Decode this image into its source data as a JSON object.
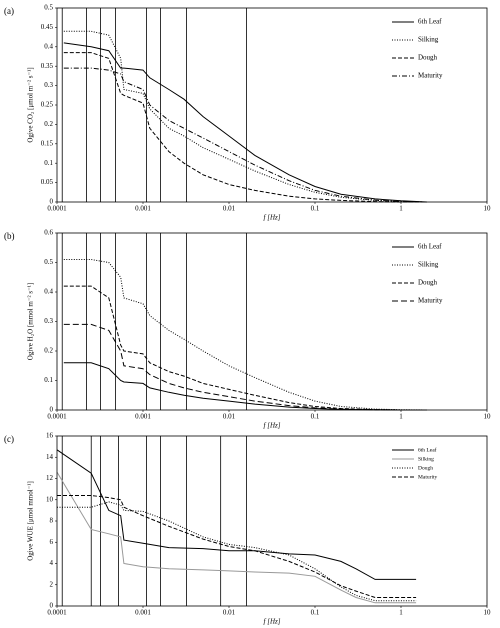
{
  "chart_data": [
    {
      "type": "line",
      "panel_label": "(a)",
      "y_label": "Ogive CO₂ [μmol m⁻² s⁻¹]",
      "x_label": "f [Hz]",
      "xscale": "log",
      "xlim": [
        0.0001,
        10
      ],
      "xticks": [
        0.0001,
        0.001,
        0.01,
        0.1,
        1,
        10
      ],
      "ylim": [
        0,
        0.5
      ],
      "yticks": [
        0,
        0.05,
        0.1,
        0.15,
        0.2,
        0.25,
        0.3,
        0.35,
        0.4,
        0.45,
        0.5
      ],
      "legend": "upper-right",
      "vlines": [
        0.000115,
        0.00022,
        0.00032,
        0.00048,
        0.0011,
        0.0016,
        0.0032,
        0.016
      ],
      "x": [
        0.00012,
        0.00025,
        0.0004,
        0.00055,
        0.0006,
        0.001,
        0.0012,
        0.002,
        0.003,
        0.005,
        0.01,
        0.02,
        0.05,
        0.1,
        0.2,
        0.5,
        1,
        2
      ],
      "series": [
        {
          "name": "6th Leaf",
          "color": "#000000",
          "dash": "solid",
          "values": [
            0.41,
            0.4,
            0.39,
            0.345,
            0.345,
            0.34,
            0.32,
            0.29,
            0.265,
            0.22,
            0.17,
            0.12,
            0.07,
            0.04,
            0.02,
            0.008,
            0.003,
            0
          ]
        },
        {
          "name": "Silking",
          "color": "#000000",
          "dash": "dotted",
          "values": [
            0.44,
            0.44,
            0.43,
            0.37,
            0.29,
            0.28,
            0.24,
            0.19,
            0.17,
            0.14,
            0.11,
            0.08,
            0.045,
            0.025,
            0.012,
            0.004,
            0.001,
            0
          ]
        },
        {
          "name": "Dough",
          "color": "#000000",
          "dash": "dashed",
          "values": [
            0.385,
            0.385,
            0.37,
            0.28,
            0.275,
            0.255,
            0.19,
            0.13,
            0.1,
            0.07,
            0.045,
            0.03,
            0.015,
            0.008,
            0.004,
            0.001,
            0,
            0
          ]
        },
        {
          "name": "Maturity",
          "color": "#000000",
          "dash": "dashdot",
          "values": [
            0.345,
            0.345,
            0.34,
            0.33,
            0.31,
            0.29,
            0.25,
            0.21,
            0.19,
            0.165,
            0.13,
            0.095,
            0.055,
            0.03,
            0.015,
            0.005,
            0.001,
            0
          ]
        }
      ]
    },
    {
      "type": "line",
      "panel_label": "(b)",
      "y_label": "Ogive H₂O [mmol m⁻² s⁻¹]",
      "x_label": "f [Hz]",
      "xscale": "log",
      "xlim": [
        0.0001,
        10
      ],
      "xticks": [
        0.0001,
        0.001,
        0.01,
        0.1,
        1,
        10
      ],
      "ylim": [
        0,
        0.6
      ],
      "yticks": [
        0,
        0.1,
        0.2,
        0.3,
        0.4,
        0.5,
        0.6
      ],
      "legend": "upper-right",
      "vlines": [
        0.000115,
        0.00022,
        0.00032,
        0.00048,
        0.0011,
        0.0016,
        0.0032,
        0.016
      ],
      "x": [
        0.00012,
        0.00025,
        0.0004,
        0.00055,
        0.0006,
        0.001,
        0.0012,
        0.002,
        0.003,
        0.005,
        0.01,
        0.02,
        0.05,
        0.1,
        0.2,
        0.5,
        1,
        2
      ],
      "series": [
        {
          "name": "6th Leaf",
          "color": "#000000",
          "dash": "solid",
          "values": [
            0.16,
            0.16,
            0.14,
            0.1,
            0.095,
            0.09,
            0.075,
            0.06,
            0.05,
            0.04,
            0.03,
            0.02,
            0.01,
            0.005,
            0.002,
            0.001,
            0,
            0
          ]
        },
        {
          "name": "Silking",
          "color": "#000000",
          "dash": "dotted",
          "values": [
            0.51,
            0.51,
            0.5,
            0.45,
            0.38,
            0.36,
            0.32,
            0.27,
            0.24,
            0.2,
            0.15,
            0.11,
            0.06,
            0.03,
            0.012,
            0.003,
            0.001,
            0
          ]
        },
        {
          "name": "Dough",
          "color": "#000000",
          "dash": "dashed",
          "values": [
            0.42,
            0.42,
            0.38,
            0.22,
            0.2,
            0.19,
            0.16,
            0.13,
            0.115,
            0.09,
            0.07,
            0.05,
            0.025,
            0.012,
            0.005,
            0.001,
            0,
            0
          ]
        },
        {
          "name": "Maturity",
          "color": "#000000",
          "dash": "longdash",
          "values": [
            0.29,
            0.29,
            0.27,
            0.2,
            0.15,
            0.14,
            0.12,
            0.09,
            0.075,
            0.06,
            0.045,
            0.03,
            0.015,
            0.007,
            0.003,
            0.001,
            0,
            0
          ]
        }
      ]
    },
    {
      "type": "line",
      "panel_label": "(c)",
      "y_label": "Ogive WUE [μmol mmol⁻¹]",
      "x_label": "f [Hz]",
      "xscale": "log",
      "xlim": [
        0.0001,
        10
      ],
      "xticks": [
        0.0001,
        0.001,
        0.01,
        0.1,
        1,
        10
      ],
      "ylim": [
        0,
        16
      ],
      "yticks": [
        0,
        2,
        4,
        6,
        8,
        10,
        12,
        14,
        16
      ],
      "legend": "upper-right",
      "vlines": [
        0.000115,
        0.00025,
        0.00032,
        0.00052,
        0.0011,
        0.0016,
        0.0032,
        0.008,
        0.016
      ],
      "x": [
        0.0001,
        0.00025,
        0.0004,
        0.00055,
        0.0006,
        0.001,
        0.002,
        0.005,
        0.01,
        0.02,
        0.05,
        0.1,
        0.2,
        0.3,
        0.5,
        1,
        1.5
      ],
      "series": [
        {
          "name": "6th Leaf",
          "color": "#000000",
          "dash": "solid",
          "values": [
            14.7,
            12.5,
            9,
            8.5,
            6.2,
            5.9,
            5.5,
            5.4,
            5.2,
            5.2,
            4.9,
            4.8,
            4.2,
            3.5,
            2.5,
            2.5,
            2.5
          ]
        },
        {
          "name": "Silking",
          "color": "#999999",
          "dash": "solid",
          "values": [
            12.6,
            7.2,
            6.8,
            6.5,
            4,
            3.7,
            3.5,
            3.4,
            3.3,
            3.2,
            3.1,
            2.8,
            1.5,
            0.8,
            0.3,
            0.3,
            0.3
          ]
        },
        {
          "name": "Dough",
          "color": "#000000",
          "dash": "dotted",
          "values": [
            9.3,
            9.3,
            9.8,
            9.5,
            9,
            8.9,
            8,
            6.5,
            5.8,
            5.5,
            4.8,
            3.5,
            1.8,
            1,
            0.5,
            0.5,
            0.5
          ]
        },
        {
          "name": "Maturity",
          "color": "#000000",
          "dash": "dashed",
          "values": [
            10.4,
            10.4,
            10.2,
            10,
            9.3,
            8.5,
            7.5,
            6.3,
            5.6,
            5.2,
            4.2,
            3.2,
            1.9,
            1.4,
            0.8,
            0.8,
            0.8
          ]
        }
      ]
    }
  ]
}
